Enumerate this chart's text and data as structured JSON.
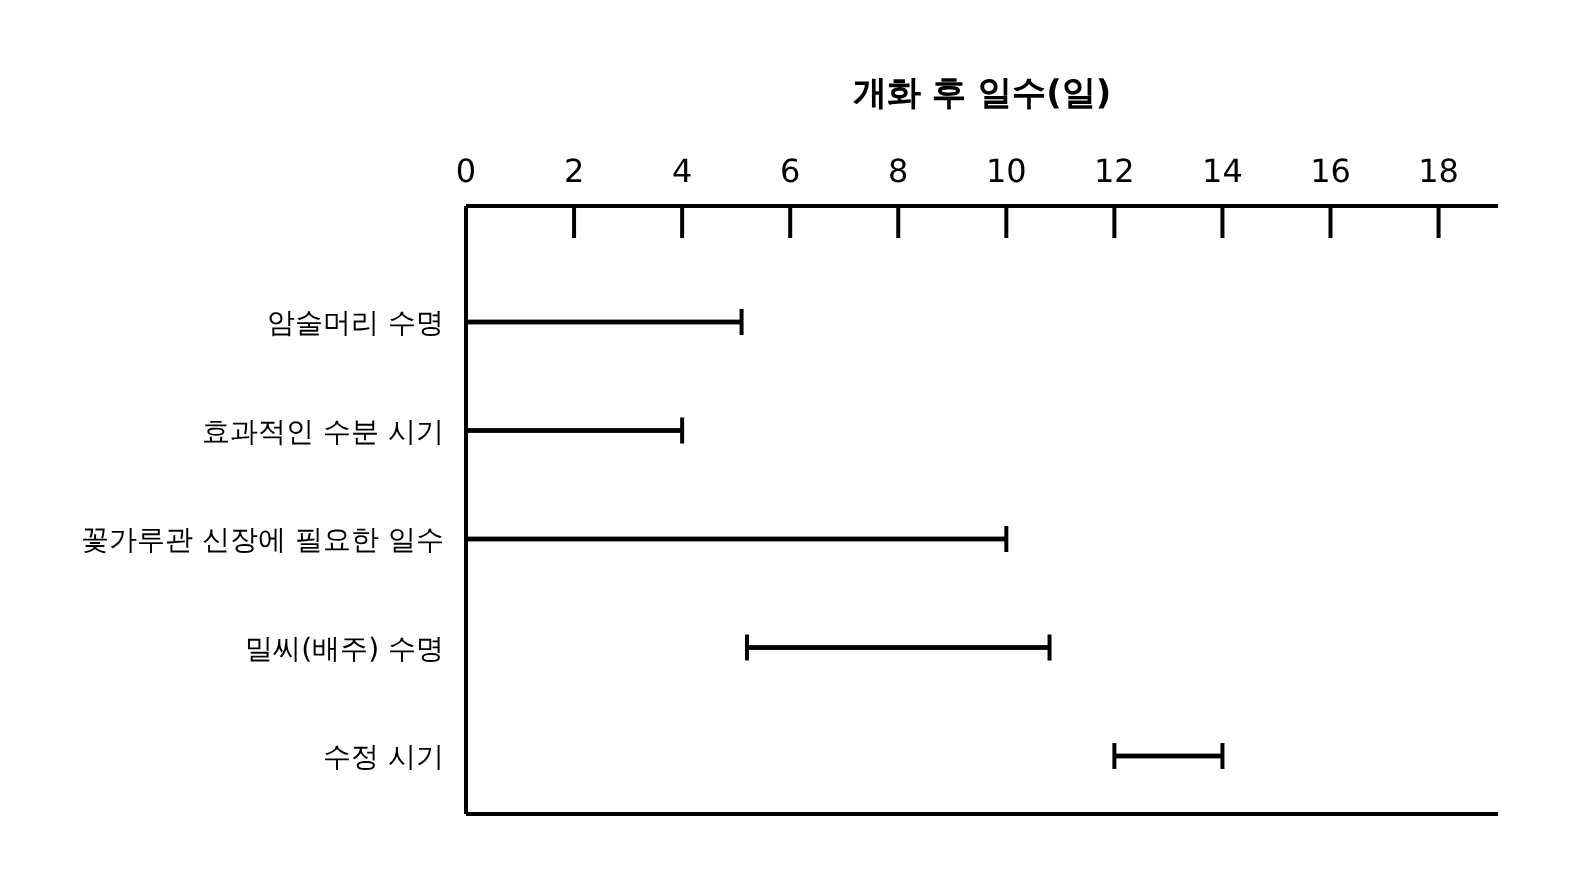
{
  "chart_data": {
    "type": "bar",
    "orientation": "horizontal",
    "xlabel": "개화 후 일수(일)",
    "categories": [
      "암술머리 수명",
      "효과적인 수분 시기",
      "꽃가루관 신장에 필요한 일수",
      "밀씨(배주) 수명",
      "수정 시기"
    ],
    "base": [
      0,
      0,
      0,
      5.2,
      12
    ],
    "values": [
      5.1,
      4,
      10,
      5.6,
      2
    ],
    "color": "#000000",
    "xlim": [
      0,
      19.1
    ],
    "xticks": [
      0,
      2,
      4,
      6,
      8,
      10,
      12,
      14,
      16,
      18
    ]
  }
}
